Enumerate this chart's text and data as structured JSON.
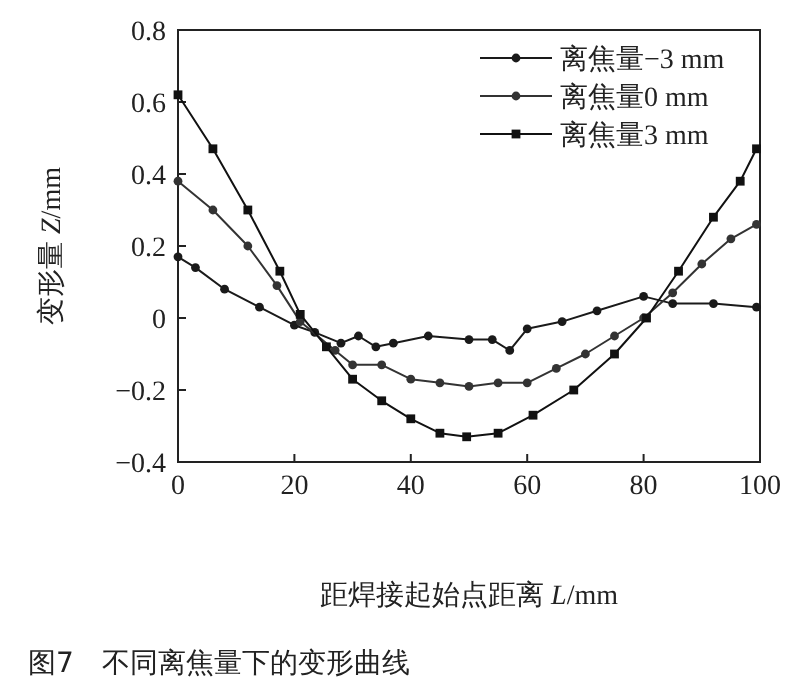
{
  "chart_data": {
    "type": "line",
    "xlabel": "距焊接起始点距离 *L*/mm",
    "ylabel": "变形量 *Z*/mm",
    "annotations": [
      "图7　不同离焦量下的变形曲线"
    ],
    "xlim": [
      0,
      100
    ],
    "ylim": [
      -0.4,
      0.8
    ],
    "xticks": [
      0,
      20,
      40,
      60,
      80,
      100
    ],
    "yticks": [
      -0.4,
      -0.2,
      0,
      0.2,
      0.4,
      0.6,
      0.8
    ],
    "grid": false,
    "legend": "top right",
    "line_style": "solid",
    "series": [
      {
        "name": "离焦量−3 mm",
        "color": "#1a1a1a",
        "marker": "circle",
        "x": [
          0,
          3,
          8,
          14,
          20,
          23.5,
          28,
          31,
          34,
          37,
          43,
          50,
          54,
          57,
          60,
          66,
          72,
          80,
          85,
          92,
          99.4
        ],
        "values": [
          0.17,
          0.14,
          0.08,
          0.03,
          -0.02,
          -0.04,
          -0.07,
          -0.05,
          -0.08,
          -0.07,
          -0.05,
          -0.06,
          -0.06,
          -0.09,
          -0.03,
          -0.01,
          0.02,
          0.06,
          0.04,
          0.04,
          0.03
        ]
      },
      {
        "name": "离焦量0 mm",
        "color": "#333333",
        "marker": "circle",
        "x": [
          0,
          6,
          12,
          17,
          21,
          27,
          30,
          35,
          40,
          45,
          50,
          55,
          60,
          65,
          70,
          75,
          80,
          85,
          90,
          95,
          99.4
        ],
        "values": [
          0.38,
          0.3,
          0.2,
          0.09,
          -0.01,
          -0.09,
          -0.13,
          -0.13,
          -0.17,
          -0.18,
          -0.19,
          -0.18,
          -0.18,
          -0.14,
          -0.1,
          -0.05,
          0.0,
          0.07,
          0.15,
          0.22,
          0.26
        ]
      },
      {
        "name": "离焦量3 mm",
        "color": "#111111",
        "marker": "square",
        "x": [
          0,
          6,
          12,
          17.5,
          21,
          25.5,
          30,
          35,
          40,
          45,
          49.6,
          55,
          61,
          68,
          75,
          80.5,
          86,
          92,
          96.6,
          99.4
        ],
        "values": [
          0.62,
          0.47,
          0.3,
          0.13,
          0.01,
          -0.08,
          -0.17,
          -0.23,
          -0.28,
          -0.32,
          -0.33,
          -0.32,
          -0.27,
          -0.2,
          -0.1,
          0.0,
          0.13,
          0.28,
          0.38,
          0.47
        ]
      }
    ]
  }
}
